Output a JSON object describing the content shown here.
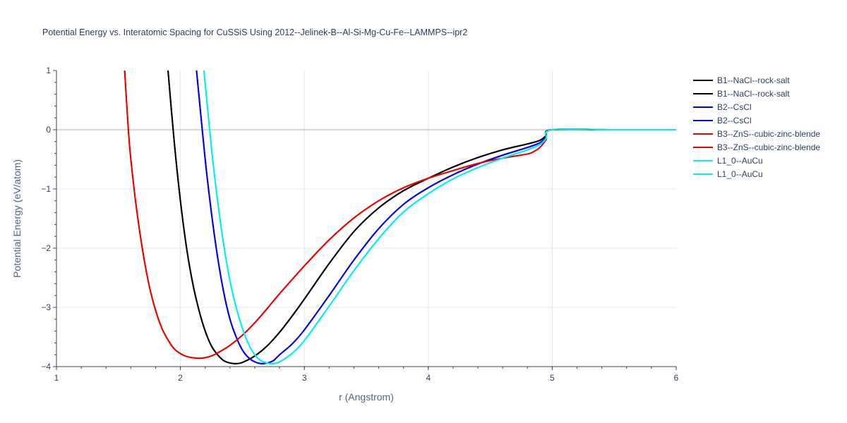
{
  "chart_data": {
    "type": "line",
    "title": "Potential Energy vs. Interatomic Spacing for CuSSiS Using 2012--Jelinek-B--Al-Si-Mg-Cu-Fe--LAMMPS--ipr2",
    "xlabel": "r (Angstrom)",
    "ylabel": "Potential Energy (eV/atom)",
    "xlim": [
      1,
      6
    ],
    "ylim": [
      -4,
      1
    ],
    "xticks": [
      "1",
      "2",
      "3",
      "4",
      "5",
      "6"
    ],
    "yticks": [
      "1",
      "0",
      "−1",
      "−2",
      "−3",
      "−4"
    ],
    "grid": true,
    "legend_position": "right",
    "series": [
      {
        "name": "B1--NaCl--rock-salt",
        "color": "#000000",
        "x": [
          1.9,
          1.95,
          2.0,
          2.05,
          2.1,
          2.15,
          2.2,
          2.25,
          2.3,
          2.35,
          2.4,
          2.45,
          2.5,
          2.6,
          2.7,
          2.8,
          2.9,
          3.0,
          3.2,
          3.4,
          3.6,
          3.8,
          4.0,
          4.2,
          4.4,
          4.6,
          4.8,
          4.9,
          4.95,
          5.0,
          5.5,
          6.0
        ],
        "y": [
          1.0,
          -0.2,
          -1.2,
          -2.0,
          -2.6,
          -3.05,
          -3.4,
          -3.65,
          -3.8,
          -3.9,
          -3.94,
          -3.95,
          -3.93,
          -3.82,
          -3.65,
          -3.42,
          -3.15,
          -2.86,
          -2.26,
          -1.72,
          -1.32,
          -1.03,
          -0.82,
          -0.63,
          -0.47,
          -0.34,
          -0.24,
          -0.18,
          -0.1,
          0.0,
          0.0,
          0.0
        ]
      },
      {
        "name": "B1--NaCl--rock-salt",
        "color": "#000000",
        "x": [
          1.9,
          1.95,
          2.0,
          2.05,
          2.1,
          2.15,
          2.2,
          2.25,
          2.3,
          2.35,
          2.4,
          2.45,
          2.5,
          2.6,
          2.7,
          2.8,
          2.9,
          3.0,
          3.2,
          3.4,
          3.6,
          3.8,
          4.0,
          4.2,
          4.4,
          4.6,
          4.8,
          4.9,
          4.95,
          5.0,
          5.5,
          6.0
        ],
        "y": [
          1.0,
          -0.2,
          -1.2,
          -2.0,
          -2.6,
          -3.05,
          -3.4,
          -3.65,
          -3.8,
          -3.9,
          -3.94,
          -3.95,
          -3.93,
          -3.82,
          -3.65,
          -3.42,
          -3.15,
          -2.86,
          -2.26,
          -1.72,
          -1.32,
          -1.03,
          -0.82,
          -0.63,
          -0.47,
          -0.34,
          -0.24,
          -0.18,
          -0.1,
          0.0,
          0.0,
          0.0
        ]
      },
      {
        "name": "B2--CsCl",
        "color": "#0000ee",
        "x": [
          2.13,
          2.2,
          2.25,
          2.3,
          2.35,
          2.4,
          2.45,
          2.5,
          2.55,
          2.6,
          2.65,
          2.7,
          2.75,
          2.8,
          2.9,
          3.0,
          3.2,
          3.4,
          3.6,
          3.8,
          4.0,
          4.2,
          4.4,
          4.6,
          4.8,
          4.9,
          4.95,
          5.0,
          5.5,
          6.0
        ],
        "y": [
          1.0,
          -0.5,
          -1.4,
          -2.15,
          -2.75,
          -3.2,
          -3.5,
          -3.72,
          -3.85,
          -3.92,
          -3.95,
          -3.94,
          -3.9,
          -3.8,
          -3.62,
          -3.38,
          -2.8,
          -2.2,
          -1.67,
          -1.26,
          -0.98,
          -0.76,
          -0.58,
          -0.43,
          -0.3,
          -0.22,
          -0.13,
          0.0,
          0.0,
          0.0
        ]
      },
      {
        "name": "B2--CsCl",
        "color": "#0000ee",
        "x": [
          2.13,
          2.2,
          2.25,
          2.3,
          2.35,
          2.4,
          2.45,
          2.5,
          2.55,
          2.6,
          2.65,
          2.7,
          2.75,
          2.8,
          2.9,
          3.0,
          3.2,
          3.4,
          3.6,
          3.8,
          4.0,
          4.2,
          4.4,
          4.6,
          4.8,
          4.9,
          4.95,
          5.0,
          5.5,
          6.0
        ],
        "y": [
          1.0,
          -0.5,
          -1.4,
          -2.15,
          -2.75,
          -3.2,
          -3.5,
          -3.72,
          -3.85,
          -3.92,
          -3.95,
          -3.94,
          -3.9,
          -3.8,
          -3.62,
          -3.38,
          -2.8,
          -2.2,
          -1.67,
          -1.26,
          -0.98,
          -0.76,
          -0.58,
          -0.43,
          -0.3,
          -0.22,
          -0.13,
          0.0,
          0.0,
          0.0
        ]
      },
      {
        "name": "B3--ZnS--cubic-zinc-blende",
        "color": "#ee0000",
        "x": [
          1.55,
          1.58,
          1.6,
          1.65,
          1.7,
          1.75,
          1.8,
          1.85,
          1.9,
          1.95,
          2.0,
          2.05,
          2.1,
          2.15,
          2.2,
          2.25,
          2.3,
          2.4,
          2.5,
          2.6,
          2.7,
          2.8,
          3.0,
          3.2,
          3.4,
          3.6,
          3.8,
          4.0,
          4.2,
          4.4,
          4.6,
          4.8,
          4.85,
          4.9,
          4.95,
          5.0,
          5.5,
          6.0
        ],
        "y": [
          1.0,
          0.0,
          -0.5,
          -1.4,
          -2.1,
          -2.65,
          -3.05,
          -3.35,
          -3.55,
          -3.7,
          -3.78,
          -3.83,
          -3.85,
          -3.86,
          -3.85,
          -3.82,
          -3.77,
          -3.64,
          -3.47,
          -3.26,
          -3.02,
          -2.77,
          -2.3,
          -1.86,
          -1.49,
          -1.2,
          -0.98,
          -0.82,
          -0.69,
          -0.57,
          -0.48,
          -0.41,
          -0.37,
          -0.3,
          -0.17,
          0.0,
          0.0,
          0.0
        ]
      },
      {
        "name": "B3--ZnS--cubic-zinc-blende",
        "color": "#ee0000",
        "x": [
          1.55,
          1.58,
          1.6,
          1.65,
          1.7,
          1.75,
          1.8,
          1.85,
          1.9,
          1.95,
          2.0,
          2.05,
          2.1,
          2.15,
          2.2,
          2.25,
          2.3,
          2.4,
          2.5,
          2.6,
          2.7,
          2.8,
          3.0,
          3.2,
          3.4,
          3.6,
          3.8,
          4.0,
          4.2,
          4.4,
          4.6,
          4.8,
          4.85,
          4.9,
          4.95,
          5.0,
          5.5,
          6.0
        ],
        "y": [
          1.0,
          0.0,
          -0.5,
          -1.4,
          -2.1,
          -2.65,
          -3.05,
          -3.35,
          -3.55,
          -3.7,
          -3.78,
          -3.83,
          -3.85,
          -3.86,
          -3.85,
          -3.82,
          -3.77,
          -3.64,
          -3.47,
          -3.26,
          -3.02,
          -2.77,
          -2.3,
          -1.86,
          -1.49,
          -1.2,
          -0.98,
          -0.82,
          -0.69,
          -0.57,
          -0.48,
          -0.41,
          -0.37,
          -0.3,
          -0.17,
          0.0,
          0.0,
          0.0
        ]
      },
      {
        "name": "L1_0--AuCu",
        "color": "#00eeee",
        "x": [
          2.19,
          2.25,
          2.3,
          2.35,
          2.4,
          2.45,
          2.5,
          2.55,
          2.6,
          2.65,
          2.7,
          2.75,
          2.8,
          2.9,
          3.0,
          3.2,
          3.4,
          3.6,
          3.8,
          4.0,
          4.2,
          4.4,
          4.6,
          4.8,
          4.9,
          4.95,
          5.0,
          5.5,
          6.0
        ],
        "y": [
          1.0,
          -0.3,
          -1.2,
          -1.95,
          -2.55,
          -3.0,
          -3.35,
          -3.62,
          -3.8,
          -3.9,
          -3.94,
          -3.95,
          -3.92,
          -3.78,
          -3.56,
          -2.98,
          -2.38,
          -1.84,
          -1.39,
          -1.08,
          -0.83,
          -0.64,
          -0.48,
          -0.34,
          -0.25,
          -0.15,
          0.0,
          0.0,
          0.0
        ]
      },
      {
        "name": "L1_0--AuCu",
        "color": "#00eeee",
        "x": [
          2.19,
          2.25,
          2.3,
          2.35,
          2.4,
          2.45,
          2.5,
          2.55,
          2.6,
          2.65,
          2.7,
          2.75,
          2.8,
          2.9,
          3.0,
          3.2,
          3.4,
          3.6,
          3.8,
          4.0,
          4.2,
          4.4,
          4.6,
          4.8,
          4.9,
          4.95,
          5.0,
          5.5,
          6.0
        ],
        "y": [
          1.0,
          -0.3,
          -1.2,
          -1.95,
          -2.55,
          -3.0,
          -3.35,
          -3.62,
          -3.8,
          -3.9,
          -3.94,
          -3.95,
          -3.92,
          -3.78,
          -3.56,
          -2.98,
          -2.38,
          -1.84,
          -1.39,
          -1.08,
          -0.83,
          -0.64,
          -0.48,
          -0.34,
          -0.25,
          -0.15,
          0.0,
          0.0,
          0.0
        ]
      }
    ]
  }
}
